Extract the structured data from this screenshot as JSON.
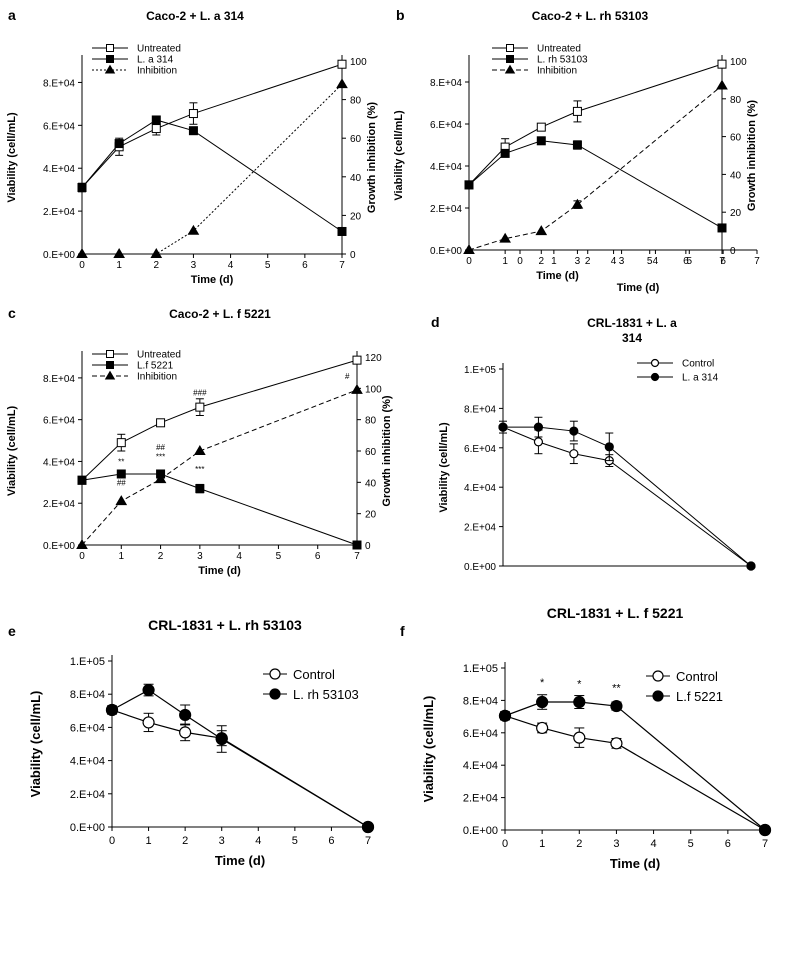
{
  "chart_data": [
    {
      "panel": "a",
      "type": "line",
      "title": "Caco-2 + L. a 314",
      "xlabel": "Time (d)",
      "ylabel": "Viability (cell/mL)",
      "y2label": "Growth inhibition (%)",
      "xticks": [
        "0",
        "1",
        "2",
        "3",
        "4",
        "5",
        "6",
        "7"
      ],
      "yticks": [
        "0.E+00",
        "2.E+04",
        "4.E+04",
        "6.E+04",
        "8.E+04"
      ],
      "y2ticks": [
        "0",
        "20",
        "40",
        "60",
        "80",
        "100"
      ],
      "xlim": [
        0,
        7
      ],
      "ylim": [
        0,
        90000
      ],
      "y2lim": [
        0,
        100
      ],
      "legend_position": "top-left",
      "series": [
        {
          "name": "Untreated",
          "axis": "left",
          "marker": "square-open",
          "line": "solid",
          "x": [
            0,
            1,
            2,
            3,
            7
          ],
          "y": [
            31000,
            50000,
            58500,
            65500,
            88500
          ],
          "err": [
            2000,
            4000,
            3000,
            5000,
            0
          ]
        },
        {
          "name": "L. a 314",
          "axis": "left",
          "marker": "square-filled",
          "line": "solid",
          "x": [
            0,
            1,
            2,
            3,
            7
          ],
          "y": [
            31000,
            51500,
            62500,
            57500,
            10500
          ],
          "err": [
            0,
            0,
            0,
            0,
            0
          ]
        },
        {
          "name": "Inhibition",
          "axis": "right",
          "marker": "triangle-filled",
          "line": "dotted",
          "x": [
            0,
            1,
            2,
            3,
            7
          ],
          "y": [
            0,
            0,
            0,
            12,
            88
          ],
          "err": [
            0,
            0,
            0,
            0,
            0
          ]
        }
      ]
    },
    {
      "panel": "b",
      "type": "line",
      "title": "Caco-2 + L. rh 53103",
      "xlabel": "Time (d)",
      "ylabel": "Viability (cell/mL)",
      "y2label": "Growth inhibition (%)",
      "xticks": [
        "0",
        "1",
        "2",
        "3",
        "4",
        "5",
        "6",
        "7"
      ],
      "xticks_extra": [
        "0",
        "1",
        "2",
        "3",
        "4",
        "5",
        "6",
        "7"
      ],
      "xlabel_extra": "Time (d)",
      "yticks": [
        "0.E+00",
        "2.E+04",
        "4.E+04",
        "6.E+04",
        "8.E+04"
      ],
      "y2ticks": [
        "0",
        "20",
        "40",
        "60",
        "80",
        "100"
      ],
      "xlim": [
        0,
        7
      ],
      "ylim": [
        0,
        90000
      ],
      "y2lim": [
        0,
        100
      ],
      "legend_position": "top-left",
      "series": [
        {
          "name": "Untreated",
          "axis": "left",
          "marker": "square-open",
          "line": "solid",
          "x": [
            0,
            1,
            2,
            3,
            7
          ],
          "y": [
            31000,
            49000,
            58500,
            66000,
            88500
          ],
          "err": [
            0,
            4000,
            0,
            5000,
            0
          ]
        },
        {
          "name": "L. rh 53103",
          "axis": "left",
          "marker": "square-filled",
          "line": "solid",
          "x": [
            0,
            1,
            2,
            3,
            7
          ],
          "y": [
            31000,
            46000,
            52000,
            50000,
            10500
          ],
          "err": [
            0,
            0,
            0,
            2000,
            0
          ]
        },
        {
          "name": "Inhibition",
          "axis": "right",
          "marker": "triangle-filled",
          "line": "dashed",
          "x": [
            0,
            1,
            2,
            3,
            7
          ],
          "y": [
            0,
            6,
            10,
            24,
            87
          ],
          "err": [
            0,
            0,
            0,
            2,
            0
          ]
        }
      ]
    },
    {
      "panel": "c",
      "type": "line",
      "title": "Caco-2 +  L. f 5221",
      "xlabel": "Time (d)",
      "ylabel": "Viability (cell/mL)",
      "y2label": "Growth inhibition (%)",
      "xticks": [
        "0",
        "1",
        "2",
        "3",
        "4",
        "5",
        "6",
        "7"
      ],
      "yticks": [
        "0.E+00",
        "2.E+04",
        "4.E+04",
        "6.E+04",
        "8.E+04"
      ],
      "y2ticks": [
        "0",
        "20",
        "40",
        "60",
        "80",
        "100",
        "120"
      ],
      "xlim": [
        0,
        7
      ],
      "ylim": [
        0,
        90000
      ],
      "y2lim": [
        0,
        120
      ],
      "legend_position": "top-left",
      "series": [
        {
          "name": "Untreated",
          "axis": "left",
          "marker": "square-open",
          "line": "solid",
          "x": [
            0,
            1,
            2,
            3,
            7
          ],
          "y": [
            31000,
            49000,
            58500,
            66000,
            88500
          ],
          "err": [
            0,
            4000,
            0,
            4000,
            0
          ]
        },
        {
          "name": "L.f  5221",
          "axis": "left",
          "marker": "square-filled",
          "line": "solid",
          "x": [
            0,
            1,
            2,
            3,
            7
          ],
          "y": [
            31000,
            34000,
            34000,
            27000,
            0
          ],
          "err": [
            0,
            0,
            0,
            2000,
            0
          ]
        },
        {
          "name": "Inhibition",
          "axis": "right",
          "marker": "triangle-filled",
          "line": "dashed",
          "x": [
            0,
            1,
            2,
            3,
            7
          ],
          "y": [
            0,
            28,
            42,
            60,
            99
          ],
          "err": [
            0,
            0,
            0,
            0,
            0
          ]
        }
      ],
      "annotations": [
        {
          "text": "**",
          "x": 1,
          "y": 38500
        },
        {
          "text": "##",
          "x": 1,
          "y": 28500
        },
        {
          "text": "##",
          "x": 2,
          "y": 45500
        },
        {
          "text": "***",
          "x": 2,
          "y": 41000
        },
        {
          "text": "###",
          "x": 3,
          "y": 71500
        },
        {
          "text": "***",
          "x": 3,
          "y": 35000
        },
        {
          "text": "#",
          "x": 6.75,
          "y": 79500
        }
      ]
    },
    {
      "panel": "d",
      "type": "line",
      "title": "CRL-1831 + L. a\n314",
      "xlabel": "",
      "ylabel": "Viability (cell/mL)",
      "yticks": [
        "0.E+00",
        "2.E+04",
        "4.E+04",
        "6.E+04",
        "8.E+04",
        "1.E+05"
      ],
      "xlim": [
        0,
        7
      ],
      "ylim": [
        0,
        100000
      ],
      "legend_position": "top-right",
      "series": [
        {
          "name": "Control",
          "marker": "circle-open",
          "line": "solid",
          "x": [
            0,
            1,
            2,
            3,
            7
          ],
          "y": [
            70500,
            63000,
            57000,
            53500,
            0
          ],
          "err": [
            3000,
            6000,
            5000,
            3000,
            0
          ]
        },
        {
          "name": "L. a 314",
          "marker": "circle-filled",
          "line": "solid",
          "x": [
            0,
            1,
            2,
            3,
            7
          ],
          "y": [
            70500,
            70500,
            68500,
            60500,
            0
          ],
          "err": [
            0,
            5000,
            5000,
            7000,
            0
          ]
        }
      ]
    },
    {
      "panel": "e",
      "type": "line",
      "title": "CRL-1831 + L. rh 53103",
      "xlabel": "Time (d)",
      "ylabel": "Viability (cell/mL)",
      "xticks": [
        "0",
        "1",
        "2",
        "3",
        "4",
        "5",
        "6",
        "7"
      ],
      "yticks": [
        "0.E+00",
        "2.E+04",
        "4.E+04",
        "6.E+04",
        "8.E+04",
        "1.E+05"
      ],
      "xlim": [
        0,
        7
      ],
      "ylim": [
        0,
        100000
      ],
      "legend_position": "top-right",
      "series": [
        {
          "name": "Control",
          "marker": "circle-open",
          "line": "solid",
          "x": [
            0,
            1,
            2,
            3,
            7
          ],
          "y": [
            70500,
            63000,
            57000,
            53500,
            0
          ],
          "err": [
            2500,
            5500,
            5000,
            4500,
            0
          ]
        },
        {
          "name": "L. rh 53103",
          "marker": "circle-filled",
          "line": "solid",
          "x": [
            0,
            1,
            2,
            3,
            7
          ],
          "y": [
            70500,
            82500,
            67500,
            53000,
            0
          ],
          "err": [
            0,
            3500,
            6000,
            8000,
            0
          ]
        }
      ]
    },
    {
      "panel": "f",
      "type": "line",
      "title": "CRL-1831 + L. f 5221",
      "xlabel": "Time (d)",
      "ylabel": "Viability (cell/mL)",
      "xticks": [
        "0",
        "1",
        "2",
        "3",
        "4",
        "5",
        "6",
        "7"
      ],
      "yticks": [
        "0.E+00",
        "2.E+04",
        "4.E+04",
        "6.E+04",
        "8.E+04",
        "1.E+05"
      ],
      "xlim": [
        0,
        7
      ],
      "ylim": [
        0,
        100000
      ],
      "legend_position": "top-right",
      "series": [
        {
          "name": "Control",
          "marker": "circle-open",
          "line": "solid",
          "x": [
            0,
            1,
            2,
            3,
            7
          ],
          "y": [
            70500,
            63000,
            57000,
            53500,
            0
          ],
          "err": [
            2500,
            3000,
            6000,
            3000,
            0
          ]
        },
        {
          "name": "L.f 5221",
          "marker": "circle-filled",
          "line": "solid",
          "x": [
            0,
            1,
            2,
            3,
            7
          ],
          "y": [
            70500,
            79000,
            79000,
            76500,
            0
          ],
          "err": [
            0,
            4500,
            4000,
            2500,
            0
          ]
        }
      ],
      "annotations": [
        {
          "text": "*",
          "x": 1,
          "y": 89000
        },
        {
          "text": "*",
          "x": 2,
          "y": 88000
        },
        {
          "text": "**",
          "x": 3,
          "y": 85500
        }
      ]
    }
  ]
}
